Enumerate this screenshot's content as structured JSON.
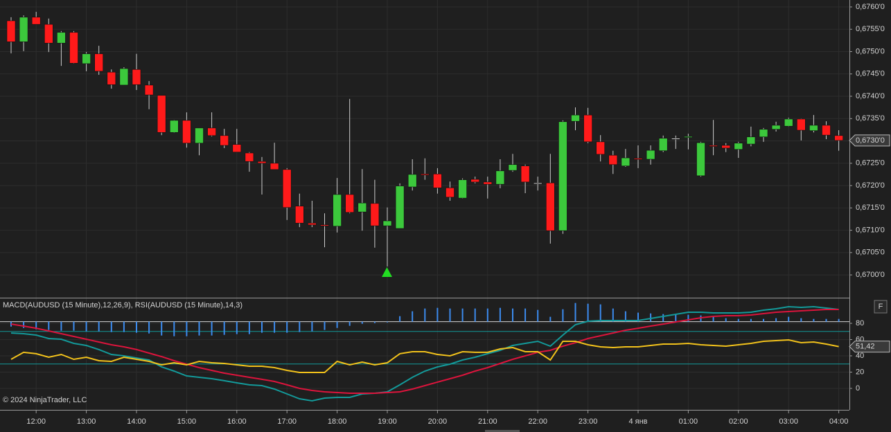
{
  "chart_data": [
    {
      "type": "candlestick",
      "categories": [
        null,
        null,
        "12:00",
        null,
        null,
        null,
        "13:00",
        null,
        null,
        null,
        "14:00",
        null,
        null,
        null,
        "15:00",
        null,
        null,
        null,
        "16:00",
        null,
        null,
        null,
        "17:00",
        null,
        null,
        null,
        "18:00",
        null,
        null,
        null,
        "19:00",
        null,
        null,
        null,
        "20:00",
        null,
        null,
        null,
        "21:00",
        null,
        null,
        null,
        "22:00",
        null,
        null,
        null,
        "23:00",
        null,
        null,
        null,
        "4 янв",
        null,
        null,
        null,
        "01:00",
        null,
        null,
        null,
        "02:00",
        null,
        null,
        null,
        "03:00",
        null,
        null,
        null,
        "04:00"
      ],
      "open": [
        0.67569,
        0.67522,
        0.67577,
        0.67561,
        0.67519,
        0.67543,
        0.67473,
        0.67495,
        0.67454,
        0.67425,
        0.6746,
        0.67425,
        0.67402,
        0.67319,
        0.67346,
        0.67295,
        0.67329,
        0.67312,
        0.67292,
        0.67273,
        0.67254,
        0.6725,
        0.67236,
        0.67154,
        0.67116,
        0.67112,
        0.67109,
        0.6718,
        0.67141,
        0.6716,
        0.6711,
        0.67104,
        0.67197,
        0.67226,
        0.67226,
        0.67195,
        0.67172,
        0.67214,
        0.67208,
        0.67203,
        0.67234,
        0.67244,
        0.67206,
        0.67206,
        0.67099,
        0.67344,
        0.67358,
        0.67298,
        0.67268,
        0.67244,
        0.67261,
        0.67259,
        0.67278,
        0.67306,
        0.67309,
        0.67222,
        0.6729,
        0.6729,
        0.67281,
        0.67293,
        0.67309,
        0.67326,
        0.67333,
        0.67349,
        0.67323,
        0.67335,
        0.67312
      ],
      "high": [
        0.67577,
        0.67581,
        0.67589,
        0.67574,
        0.67546,
        0.67546,
        0.67499,
        0.67513,
        0.6746,
        0.67465,
        0.67495,
        0.67434,
        0.67402,
        0.67347,
        0.67364,
        0.67329,
        0.67364,
        0.67327,
        0.67327,
        0.67275,
        0.67264,
        0.67296,
        0.67239,
        0.67182,
        0.67166,
        0.67138,
        0.67217,
        0.67394,
        0.67237,
        0.67213,
        0.67151,
        0.67205,
        0.67259,
        0.67261,
        0.67239,
        0.67209,
        0.67216,
        0.6722,
        0.6722,
        0.67259,
        0.67271,
        0.67247,
        0.6722,
        0.67271,
        0.67346,
        0.67375,
        0.67374,
        0.67313,
        0.67278,
        0.67282,
        0.6729,
        0.6729,
        0.67312,
        0.67312,
        0.67316,
        0.67298,
        0.67347,
        0.67295,
        0.67298,
        0.67332,
        0.67329,
        0.67343,
        0.67352,
        0.6735,
        0.67358,
        0.67344,
        0.67324
      ],
      "low": [
        0.67496,
        0.67501,
        0.67561,
        0.67499,
        0.67468,
        0.67473,
        0.67456,
        0.67448,
        0.67417,
        0.67425,
        0.67414,
        0.67371,
        0.67313,
        0.67318,
        0.67285,
        0.67268,
        0.6731,
        0.67284,
        0.67275,
        0.67231,
        0.6718,
        0.67236,
        0.67123,
        0.67107,
        0.67107,
        0.67062,
        0.67095,
        0.67138,
        0.67099,
        0.67061,
        0.67019,
        0.67104,
        0.67189,
        0.67213,
        0.67182,
        0.67166,
        0.67171,
        0.67205,
        0.67171,
        0.67194,
        0.67231,
        0.67183,
        0.67189,
        0.6707,
        0.67092,
        0.67324,
        0.67295,
        0.67254,
        0.67226,
        0.67242,
        0.67239,
        0.67247,
        0.67275,
        0.67282,
        0.67281,
        0.6722,
        0.67268,
        0.67275,
        0.67262,
        0.67288,
        0.67298,
        0.67321,
        0.67332,
        0.67301,
        0.67319,
        0.67304,
        0.67278
      ],
      "close": [
        0.67522,
        0.67577,
        0.67561,
        0.67519,
        0.67543,
        0.67474,
        0.67495,
        0.67456,
        0.67426,
        0.67462,
        0.67426,
        0.67403,
        0.67319,
        0.67346,
        0.67295,
        0.67329,
        0.67312,
        0.6729,
        0.67275,
        0.67254,
        0.6725,
        0.67236,
        0.67151,
        0.67116,
        0.67112,
        0.6711,
        0.6718,
        0.6714,
        0.67161,
        0.6711,
        0.67121,
        0.67199,
        0.67225,
        0.67225,
        0.67195,
        0.67174,
        0.67213,
        0.67208,
        0.67203,
        0.67233,
        0.67247,
        0.67208,
        0.67206,
        0.67099,
        0.67343,
        0.67358,
        0.67298,
        0.6727,
        0.67247,
        0.67262,
        0.67259,
        0.67279,
        0.67306,
        0.67306,
        0.6731,
        0.67296,
        0.67288,
        0.67284,
        0.67295,
        0.67309,
        0.67326,
        0.67335,
        0.67349,
        0.67324,
        0.67335,
        0.67313,
        0.67301
      ],
      "up_color": "#3cc83c",
      "down_color": "#ff1a1a",
      "doji_color": "#e6e6e6",
      "ylim": [
        0.66949,
        0.676155
      ],
      "yticks": [
        {
          "value": 0.676,
          "label": "0,6760'0"
        },
        {
          "value": 0.6755,
          "label": "0,6755'0"
        },
        {
          "value": 0.675,
          "label": "0,6750'0"
        },
        {
          "value": 0.6745,
          "label": "0,6745'0"
        },
        {
          "value": 0.674,
          "label": "0,6740'0"
        },
        {
          "value": 0.6735,
          "label": "0,6735'0"
        },
        {
          "value": 0.673,
          "label": "0,6730'0"
        },
        {
          "value": 0.6725,
          "label": "0,6725'0"
        },
        {
          "value": 0.672,
          "label": "0,6720'0"
        },
        {
          "value": 0.6715,
          "label": "0,6715'0"
        },
        {
          "value": 0.671,
          "label": "0,6710'0"
        },
        {
          "value": 0.6705,
          "label": "0,6705'0"
        },
        {
          "value": 0.67,
          "label": "0,6700'0"
        }
      ],
      "last_price_label": "0,6730'0",
      "grid": true
    },
    {
      "type": "line",
      "title": "MACD(AUDUSD (15 Minute),12,26,9), RSI(AUDUSD (15 Minute),14,3)",
      "copyright": "© 2024 NinjaTrader, LLC",
      "button": "F",
      "ylim": [
        -26.4,
        111.5
      ],
      "yticks": [
        80,
        60,
        40,
        20,
        0
      ],
      "levels": [
        82,
        70,
        30
      ],
      "level_colors": [
        "#d8d8d8",
        "#129a9a",
        "#129a9a"
      ],
      "series": [
        {
          "style": "bar",
          "color": "#3c8cf0",
          "values": [
            -6.0,
            -7.7,
            -9.4,
            -10.2,
            -11.1,
            -11.1,
            -11.9,
            -11.9,
            -12.8,
            -12.8,
            -13.6,
            -14.5,
            -17.0,
            -17.9,
            -17.9,
            -17.0,
            -17.0,
            -16.2,
            -15.3,
            -15.3,
            -13.6,
            -13.6,
            -13.6,
            -12.8,
            -11.9,
            -10.2,
            -7.7,
            -5.1,
            -2.6,
            -1.7,
            -0.9,
            6.8,
            12.8,
            16.2,
            17.0,
            16.2,
            16.2,
            16.2,
            16.2,
            17.0,
            16.2,
            16.2,
            14.5,
            6.0,
            15.3,
            23.0,
            22.1,
            21.3,
            16.2,
            12.8,
            11.1,
            10.2,
            9.4,
            9.4,
            8.5,
            7.7,
            6.8,
            4.3,
            3.4,
            3.4,
            3.4,
            4.3,
            6.0,
            4.3,
            3.4,
            3.4,
            3.4
          ]
        },
        {
          "style": "line",
          "color": "#139a9a",
          "values": [
            68.1,
            67.2,
            65.5,
            61.3,
            60.4,
            55.3,
            52.8,
            47.7,
            41.7,
            40.0,
            37.4,
            34.9,
            26.4,
            21.3,
            15.3,
            13.6,
            11.9,
            9.4,
            6.8,
            4.3,
            3.4,
            -0.9,
            -6.8,
            -12.8,
            -15.3,
            -11.9,
            -11.1,
            -11.1,
            -6.8,
            -6.0,
            -4.3,
            4.3,
            13.6,
            21.3,
            26.4,
            29.8,
            34.9,
            38.3,
            42.6,
            46.8,
            52.8,
            55.3,
            57.9,
            51.9,
            65.5,
            78.3,
            82.6,
            83.4,
            83.4,
            83.4,
            83.4,
            86.0,
            88.5,
            91.1,
            93.6,
            93.6,
            92.8,
            92.8,
            92.8,
            93.6,
            96.2,
            97.9,
            100.4,
            99.6,
            100.4,
            98.7,
            97.0
          ]
        },
        {
          "style": "line",
          "color": "#dc143c",
          "values": [
            79.1,
            76.6,
            74.0,
            70.6,
            67.2,
            63.8,
            60.4,
            57.0,
            53.6,
            51.1,
            47.7,
            43.4,
            39.1,
            34.0,
            29.8,
            25.5,
            22.1,
            18.7,
            16.2,
            13.6,
            11.1,
            8.5,
            4.3,
            0,
            -2.6,
            -4.3,
            -5.1,
            -6.0,
            -6.0,
            -6.0,
            -5.1,
            -4.3,
            -0.9,
            3.4,
            7.7,
            11.9,
            16.2,
            21.3,
            25.5,
            30.6,
            35.7,
            40.0,
            44.3,
            46.8,
            51.9,
            56.2,
            61.3,
            64.7,
            68.1,
            71.5,
            74.0,
            76.6,
            79.1,
            81.7,
            84.3,
            86.8,
            88.5,
            89.4,
            89.4,
            90.2,
            91.9,
            93.6,
            94.5,
            95.3,
            96.2,
            97.0,
            97.0
          ]
        },
        {
          "style": "line",
          "color": "#f2c21b",
          "last_label": "51,42",
          "values": [
            35.7,
            44.3,
            42.6,
            38.3,
            41.7,
            35.7,
            38.3,
            34.0,
            33.2,
            38.3,
            35.7,
            33.2,
            28.9,
            31.5,
            28.9,
            33.2,
            31.5,
            30.6,
            28.9,
            27.2,
            27.2,
            25.5,
            22.1,
            19.6,
            19.6,
            19.6,
            33.2,
            28.9,
            32.3,
            28.9,
            31.5,
            42.6,
            45.1,
            45.1,
            41.7,
            40.0,
            45.1,
            44.3,
            44.3,
            48.5,
            50.2,
            45.1,
            45.1,
            34.9,
            57.9,
            57.9,
            53.6,
            51.1,
            50.2,
            51.1,
            51.1,
            52.8,
            54.5,
            54.5,
            55.3,
            53.6,
            52.8,
            51.9,
            53.6,
            55.3,
            57.9,
            58.7,
            59.6,
            56.2,
            57.0,
            54.5,
            51.42
          ]
        }
      ]
    }
  ]
}
